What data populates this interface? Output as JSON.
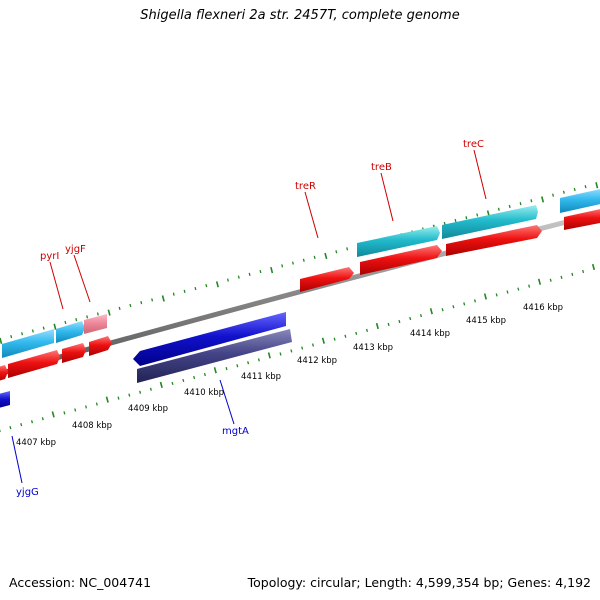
{
  "title": "Shigella flexneri 2a str. 2457T, complete genome",
  "accession_text": "Accession: NC_004741",
  "summary_text": "Topology: circular; Length: 4,599,354 bp; Genes: 4,192",
  "kbp_labels": [
    "4407 kbp",
    "4408 kbp",
    "4409 kbp",
    "4410 kbp",
    "4411 kbp",
    "4412 kbp",
    "4413 kbp",
    "4414 kbp",
    "4415 kbp",
    "4416 kbp"
  ],
  "gene_labels": {
    "pyrI": "pyrI",
    "yjgF": "yjgF",
    "treR": "treR",
    "treB": "treB",
    "treC": "treC",
    "mgtA": "mgtA",
    "yjgG": "yjgG"
  },
  "colors": {
    "forward_cds": "#ee1111",
    "forward_gene": "#22bbcc",
    "forward_gene_alt": "#33bbee",
    "pseudo_gene": "#ee8899",
    "reverse_cds": "#1111cc",
    "reverse_gene": "#444488",
    "backbone": "#888888",
    "tick": "#228822",
    "label_forward": "#cc0000",
    "label_reverse": "#0000cc"
  }
}
